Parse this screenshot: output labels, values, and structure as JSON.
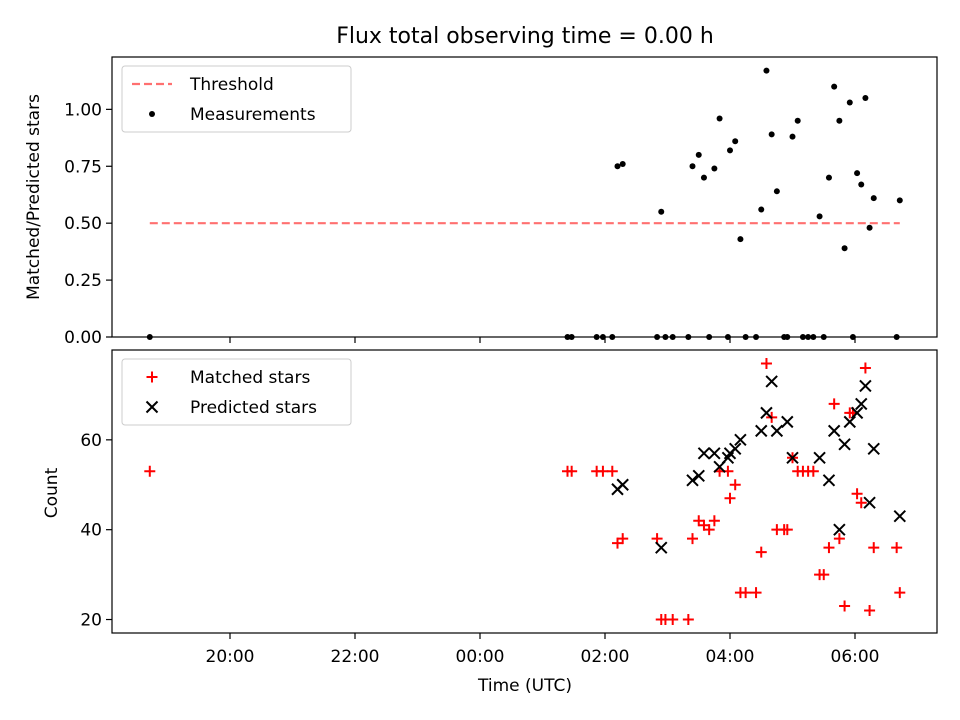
{
  "chart_data": {
    "type": "scatter",
    "title": "Flux total observing time = 0.00 h",
    "xlabel": "Time (UTC)",
    "x_tick_labels": [
      {
        "t": "20:00",
        "label": "20:00"
      },
      {
        "t": "22:00",
        "label": "22:00"
      },
      {
        "t": "00:00",
        "label": "00:00"
      },
      {
        "t": "02:00",
        "label": "02:00"
      },
      {
        "t": "04:00",
        "label": "04:00"
      },
      {
        "t": "06:00",
        "label": "06:00"
      }
    ],
    "panels": [
      {
        "ylabel": "Matched/Predicted stars",
        "ylim": [
          0,
          1.23
        ],
        "yticks": [
          0.0,
          0.25,
          0.5,
          0.75,
          1.0
        ],
        "ytick_labels": [
          "0.00",
          "0.25",
          "0.50",
          "0.75",
          "1.00"
        ],
        "legend": "top-left",
        "series": [
          {
            "name": "Threshold",
            "kind": "dashed-line",
            "color": "#ff7070",
            "x": [
              "18:43",
              "06:43"
            ],
            "y": [
              0.5,
              0.5
            ]
          },
          {
            "name": "Measurements",
            "kind": "dot",
            "color": "#000000",
            "points": [
              [
                "18:43",
                0.0
              ],
              [
                "01:24",
                0.0
              ],
              [
                "01:28",
                0.0
              ],
              [
                "01:52",
                0.0
              ],
              [
                "01:58",
                0.0
              ],
              [
                "02:07",
                0.0
              ],
              [
                "02:12",
                0.75
              ],
              [
                "02:17",
                0.76
              ],
              [
                "02:50",
                0.0
              ],
              [
                "02:54",
                0.55
              ],
              [
                "02:58",
                0.0
              ],
              [
                "03:05",
                0.0
              ],
              [
                "03:20",
                0.0
              ],
              [
                "03:24",
                0.75
              ],
              [
                "03:30",
                0.8
              ],
              [
                "03:35",
                0.7
              ],
              [
                "03:40",
                0.0
              ],
              [
                "03:45",
                0.74
              ],
              [
                "03:50",
                0.96
              ],
              [
                "03:58",
                0.0
              ],
              [
                "04:00",
                0.82
              ],
              [
                "04:05",
                0.86
              ],
              [
                "04:10",
                0.43
              ],
              [
                "04:15",
                0.0
              ],
              [
                "04:25",
                0.0
              ],
              [
                "04:30",
                0.56
              ],
              [
                "04:35",
                1.17
              ],
              [
                "04:40",
                0.89
              ],
              [
                "04:45",
                0.64
              ],
              [
                "04:52",
                0.0
              ],
              [
                "04:55",
                0.0
              ],
              [
                "05:00",
                0.88
              ],
              [
                "05:05",
                0.95
              ],
              [
                "05:10",
                0.0
              ],
              [
                "05:15",
                0.0
              ],
              [
                "05:20",
                0.0
              ],
              [
                "05:26",
                0.53
              ],
              [
                "05:30",
                0.0
              ],
              [
                "05:35",
                0.7
              ],
              [
                "05:40",
                1.1
              ],
              [
                "05:45",
                0.95
              ],
              [
                "05:50",
                0.39
              ],
              [
                "05:55",
                1.03
              ],
              [
                "05:58",
                0.0
              ],
              [
                "06:02",
                0.72
              ],
              [
                "06:06",
                0.67
              ],
              [
                "06:10",
                1.05
              ],
              [
                "06:14",
                0.48
              ],
              [
                "06:18",
                0.61
              ],
              [
                "06:40",
                0.0
              ],
              [
                "06:43",
                0.6
              ]
            ]
          }
        ]
      },
      {
        "ylabel": "Count",
        "ylim": [
          17,
          80
        ],
        "yticks": [
          20,
          40,
          60
        ],
        "ytick_labels": [
          "20",
          "40",
          "60"
        ],
        "legend": "top-left",
        "series": [
          {
            "name": "Matched stars",
            "kind": "plus",
            "color": "#ff0000",
            "points": [
              [
                "18:43",
                53
              ],
              [
                "01:24",
                53
              ],
              [
                "01:28",
                53
              ],
              [
                "01:52",
                53
              ],
              [
                "01:58",
                53
              ],
              [
                "02:07",
                53
              ],
              [
                "02:12",
                37
              ],
              [
                "02:17",
                38
              ],
              [
                "02:50",
                38
              ],
              [
                "02:54",
                20
              ],
              [
                "02:58",
                20
              ],
              [
                "03:05",
                20
              ],
              [
                "03:20",
                20
              ],
              [
                "03:24",
                38
              ],
              [
                "03:30",
                42
              ],
              [
                "03:35",
                41
              ],
              [
                "03:40",
                40
              ],
              [
                "03:45",
                42
              ],
              [
                "03:50",
                53
              ],
              [
                "03:58",
                53
              ],
              [
                "04:00",
                47
              ],
              [
                "04:05",
                50
              ],
              [
                "04:10",
                26
              ],
              [
                "04:15",
                26
              ],
              [
                "04:25",
                26
              ],
              [
                "04:30",
                35
              ],
              [
                "04:35",
                77
              ],
              [
                "04:40",
                65
              ],
              [
                "04:45",
                40
              ],
              [
                "04:52",
                40
              ],
              [
                "04:55",
                40
              ],
              [
                "05:00",
                56
              ],
              [
                "05:05",
                53
              ],
              [
                "05:10",
                53
              ],
              [
                "05:15",
                53
              ],
              [
                "05:20",
                53
              ],
              [
                "05:26",
                30
              ],
              [
                "05:30",
                30
              ],
              [
                "05:35",
                36
              ],
              [
                "05:40",
                68
              ],
              [
                "05:45",
                38
              ],
              [
                "05:50",
                23
              ],
              [
                "05:55",
                66
              ],
              [
                "05:58",
                66
              ],
              [
                "06:02",
                48
              ],
              [
                "06:06",
                46
              ],
              [
                "06:10",
                76
              ],
              [
                "06:14",
                22
              ],
              [
                "06:18",
                36
              ],
              [
                "06:40",
                36
              ],
              [
                "06:43",
                26
              ]
            ]
          },
          {
            "name": "Predicted stars",
            "kind": "x",
            "color": "#000000",
            "points": [
              [
                "02:12",
                49
              ],
              [
                "02:17",
                50
              ],
              [
                "02:54",
                36
              ],
              [
                "03:24",
                51
              ],
              [
                "03:30",
                52
              ],
              [
                "03:35",
                57
              ],
              [
                "03:45",
                57
              ],
              [
                "03:50",
                54
              ],
              [
                "03:58",
                56
              ],
              [
                "04:00",
                57
              ],
              [
                "04:05",
                58
              ],
              [
                "04:10",
                60
              ],
              [
                "04:30",
                62
              ],
              [
                "04:35",
                66
              ],
              [
                "04:40",
                73
              ],
              [
                "04:45",
                62
              ],
              [
                "04:55",
                64
              ],
              [
                "05:00",
                56
              ],
              [
                "05:26",
                56
              ],
              [
                "05:35",
                51
              ],
              [
                "05:40",
                62
              ],
              [
                "05:45",
                40
              ],
              [
                "05:50",
                59
              ],
              [
                "05:55",
                64
              ],
              [
                "06:02",
                66
              ],
              [
                "06:06",
                68
              ],
              [
                "06:10",
                72
              ],
              [
                "06:14",
                46
              ],
              [
                "06:18",
                58
              ],
              [
                "06:43",
                43
              ]
            ]
          }
        ]
      }
    ]
  }
}
